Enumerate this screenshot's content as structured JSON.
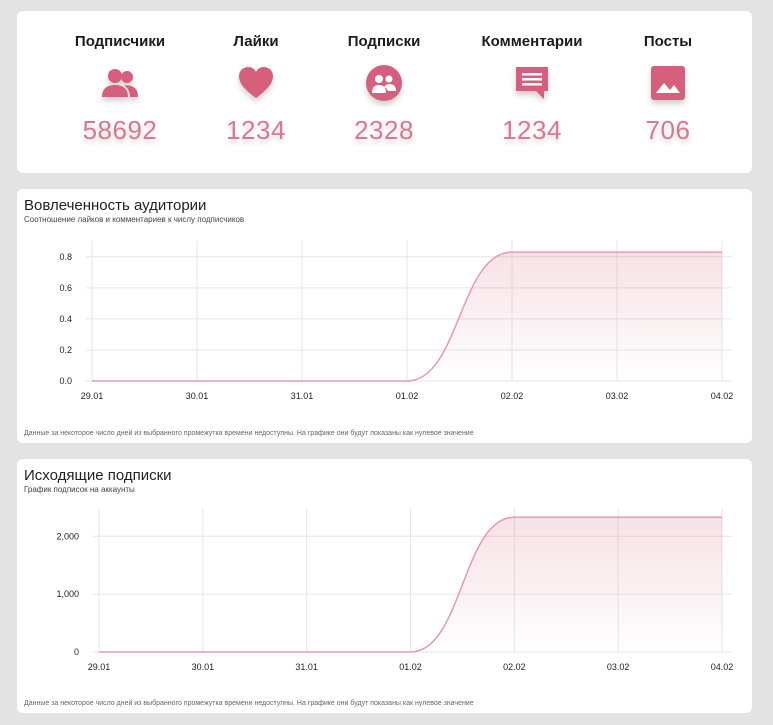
{
  "stats": [
    {
      "label": "Подписчики",
      "value": "58692",
      "icon": "followers-icon"
    },
    {
      "label": "Лайки",
      "value": "1234",
      "icon": "heart-icon"
    },
    {
      "label": "Подписки",
      "value": "2328",
      "icon": "following-icon"
    },
    {
      "label": "Комментарии",
      "value": "1234",
      "icon": "comment-icon"
    },
    {
      "label": "Посты",
      "value": "706",
      "icon": "image-icon"
    }
  ],
  "colors": {
    "accent": "#d9788f",
    "line": "#e79aac",
    "grid": "#e6e6e6"
  },
  "engagement": {
    "title": "Вовлеченность аудитории",
    "subtitle": "Соотношение лайков и комментариев к числу подписчиков",
    "note": "Данные за некоторое число дней из выбранного промежутка времени недоступны. На графике они будут показаны как нулевое значение"
  },
  "subscriptions": {
    "title": "Исходящие подписки",
    "subtitle": "График подписок на аккаунты",
    "note": "Данные за некоторое число дней из выбранного промежутка времени недоступны. На графике они будут показаны как нулевое значение"
  },
  "chart_data": [
    {
      "type": "area",
      "x": [
        "29.01",
        "30.01",
        "31.01",
        "01.02",
        "02.02",
        "03.02",
        "04.02"
      ],
      "values": [
        0,
        0,
        0,
        0,
        0.83,
        0.83,
        0.83
      ],
      "ylim": [
        0,
        0.85
      ],
      "yticks": [
        "0.0",
        "0.2",
        "0.4",
        "0.6",
        "0.8"
      ],
      "ytick_values": [
        0,
        0.2,
        0.4,
        0.6,
        0.8
      ],
      "grid": true
    },
    {
      "type": "area",
      "x": [
        "29.01",
        "30.01",
        "31.01",
        "01.02",
        "02.02",
        "03.02",
        "04.02"
      ],
      "values": [
        0,
        0,
        0,
        0,
        2328,
        2328,
        2328
      ],
      "ylim": [
        0,
        2350
      ],
      "yticks": [
        "0",
        "1,000",
        "2,000"
      ],
      "ytick_values": [
        0,
        1000,
        2000
      ],
      "grid": true
    }
  ]
}
